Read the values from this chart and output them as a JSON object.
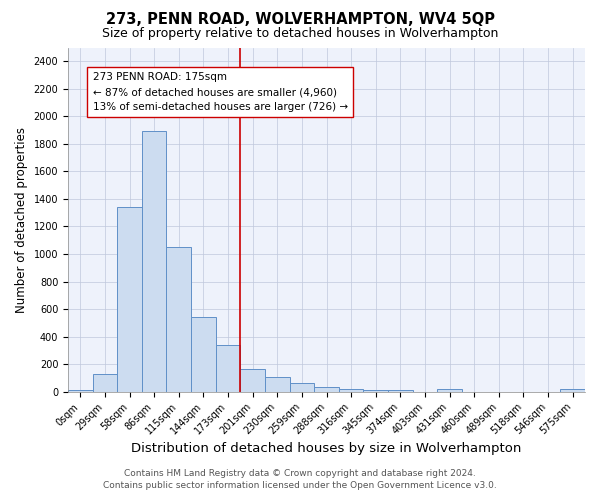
{
  "title": "273, PENN ROAD, WOLVERHAMPTON, WV4 5QP",
  "subtitle": "Size of property relative to detached houses in Wolverhampton",
  "xlabel": "Distribution of detached houses by size in Wolverhampton",
  "ylabel": "Number of detached properties",
  "categories": [
    "0sqm",
    "29sqm",
    "58sqm",
    "86sqm",
    "115sqm",
    "144sqm",
    "173sqm",
    "201sqm",
    "230sqm",
    "259sqm",
    "288sqm",
    "316sqm",
    "345sqm",
    "374sqm",
    "403sqm",
    "431sqm",
    "460sqm",
    "489sqm",
    "518sqm",
    "546sqm",
    "575sqm"
  ],
  "values": [
    15,
    130,
    1340,
    1890,
    1050,
    545,
    340,
    165,
    110,
    60,
    35,
    22,
    15,
    10,
    0,
    18,
    0,
    0,
    0,
    0,
    18
  ],
  "bar_color": "#ccdcf0",
  "bar_edge_color": "#6090c8",
  "vline_x": 6.5,
  "vline_color": "#cc0000",
  "annotation_text": "273 PENN ROAD: 175sqm\n← 87% of detached houses are smaller (4,960)\n13% of semi-detached houses are larger (726) →",
  "ylim": [
    0,
    2500
  ],
  "yticks": [
    0,
    200,
    400,
    600,
    800,
    1000,
    1200,
    1400,
    1600,
    1800,
    2000,
    2200,
    2400
  ],
  "footer_line1": "Contains HM Land Registry data © Crown copyright and database right 2024.",
  "footer_line2": "Contains public sector information licensed under the Open Government Licence v3.0.",
  "background_color": "#eef2fb",
  "grid_color": "#c0c8dc",
  "title_fontsize": 10.5,
  "subtitle_fontsize": 9,
  "xlabel_fontsize": 9.5,
  "ylabel_fontsize": 8.5,
  "tick_fontsize": 7,
  "annotation_fontsize": 7.5,
  "footer_fontsize": 6.5
}
